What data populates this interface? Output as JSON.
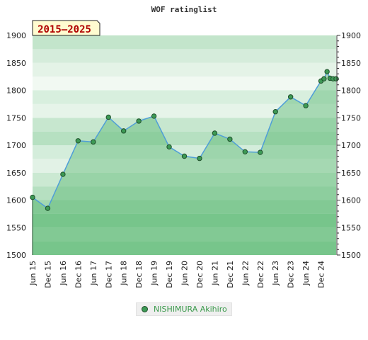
{
  "chart_data": {
    "type": "line",
    "title": "WOF ratinglist",
    "period_label": "2015–2025",
    "ylim": [
      1500,
      1900
    ],
    "y_ticks": [
      1500,
      1550,
      1600,
      1650,
      1700,
      1750,
      1800,
      1850,
      1900
    ],
    "x_tick_labels": [
      "Jun 15",
      "Dec 15",
      "Jun 16",
      "Dec 16",
      "Jun 17",
      "Dec 17",
      "Jun 18",
      "Dec 18",
      "Jun 19",
      "Dec 19",
      "Jun 20",
      "Dec 20",
      "Jun 21",
      "Dec 21",
      "Jun 22",
      "Dec 22",
      "Jun 23",
      "Dec 23",
      "Jun 24",
      "Dec 24"
    ],
    "series": [
      {
        "name": "NISHIMURA Akihiro",
        "points": [
          {
            "t": 0.0,
            "v": 1605
          },
          {
            "t": 1.0,
            "v": 1585
          },
          {
            "t": 2.0,
            "v": 1647
          },
          {
            "t": 3.0,
            "v": 1708
          },
          {
            "t": 4.0,
            "v": 1706
          },
          {
            "t": 5.0,
            "v": 1751
          },
          {
            "t": 6.0,
            "v": 1726
          },
          {
            "t": 7.0,
            "v": 1744
          },
          {
            "t": 8.0,
            "v": 1753
          },
          {
            "t": 9.0,
            "v": 1697
          },
          {
            "t": 10.0,
            "v": 1680
          },
          {
            "t": 11.0,
            "v": 1676
          },
          {
            "t": 12.0,
            "v": 1722
          },
          {
            "t": 13.0,
            "v": 1711
          },
          {
            "t": 14.0,
            "v": 1688
          },
          {
            "t": 15.0,
            "v": 1687
          },
          {
            "t": 16.0,
            "v": 1761
          },
          {
            "t": 17.0,
            "v": 1788
          },
          {
            "t": 18.0,
            "v": 1772
          },
          {
            "t": 19.0,
            "v": 1817
          },
          {
            "t": 19.2,
            "v": 1821
          },
          {
            "t": 19.4,
            "v": 1834
          },
          {
            "t": 19.6,
            "v": 1822
          },
          {
            "t": 19.8,
            "v": 1821
          },
          {
            "t": 20.0,
            "v": 1821
          }
        ]
      }
    ],
    "colors": {
      "line": "#4f9ed8",
      "marker_fill": "#3d9a55",
      "marker_stroke": "#1f4f2b",
      "area_fill": "#5cb874",
      "legend_text": "#3a9a4b",
      "period_box_fill": "#fffcd0",
      "period_text": "#b00000"
    },
    "grid": true,
    "legend_position": "bottom-center"
  }
}
